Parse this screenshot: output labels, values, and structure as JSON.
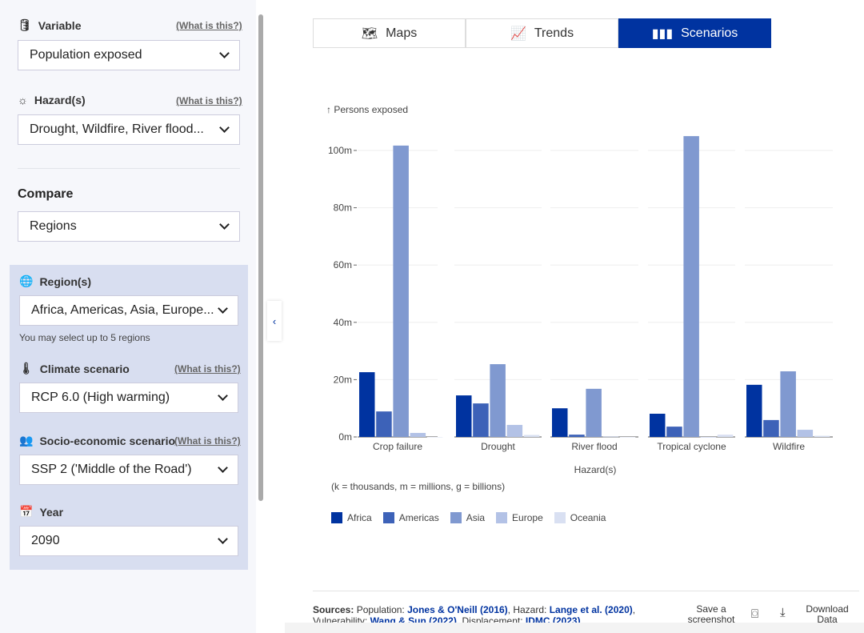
{
  "sidebar": {
    "variable": {
      "label": "Variable",
      "help": "(What is this?)",
      "value": "Population exposed"
    },
    "hazard": {
      "label": "Hazard(s)",
      "help": "(What is this?)",
      "value": "Drought, Wildfire, River flood..."
    },
    "compare": {
      "label": "Compare",
      "value": "Regions"
    },
    "regions": {
      "label": "Region(s)",
      "value": "Africa, Americas, Asia, Europe...",
      "note": "You may select up to 5 regions"
    },
    "climate": {
      "label": "Climate scenario",
      "help": "(What is this?)",
      "value": "RCP 6.0 (High warming)"
    },
    "socio": {
      "label": "Socio-economic scenario",
      "help": "(What is this?)",
      "value": "SSP 2 ('Middle of the Road')"
    },
    "year": {
      "label": "Year",
      "value": "2090"
    }
  },
  "tabs": [
    {
      "label": "Maps",
      "icon": "map-icon"
    },
    {
      "label": "Trends",
      "icon": "line-chart-icon"
    },
    {
      "label": "Scenarios",
      "icon": "bar-chart-icon",
      "active": true
    }
  ],
  "chart_data": {
    "type": "bar",
    "ylabel": "↑ Persons exposed",
    "xlabel": "Hazard(s)",
    "note": "(k = thousands, m = millions, g = billions)",
    "categories": [
      "Crop failure",
      "Drought",
      "River flood",
      "Tropical cyclone",
      "Wildfire"
    ],
    "yticks": [
      "0m",
      "20m",
      "40m",
      "60m",
      "80m",
      "100m"
    ],
    "ylim": [
      0,
      105
    ],
    "unit": "millions",
    "grid": true,
    "legend": "bottom-left",
    "series": [
      {
        "name": "Africa",
        "color": "#0033a0",
        "values": [
          22.6,
          14.5,
          10.0,
          8.1,
          18.2
        ]
      },
      {
        "name": "Americas",
        "color": "#3d62b8",
        "values": [
          8.9,
          11.7,
          0.8,
          3.6,
          5.9
        ]
      },
      {
        "name": "Asia",
        "color": "#8099d0",
        "values": [
          101.7,
          25.4,
          16.8,
          105.0,
          22.9
        ]
      },
      {
        "name": "Europe",
        "color": "#b3c2e6",
        "values": [
          1.4,
          4.2,
          0.1,
          0.0,
          2.5
        ]
      },
      {
        "name": "Oceania",
        "color": "#d9e0f2",
        "values": [
          0.0,
          0.7,
          0.0,
          0.8,
          0.4
        ]
      }
    ]
  },
  "footer": {
    "sources_label": "Sources:",
    "pop": "Population:",
    "pop_link": "Jones & O'Neill (2016)",
    "haz": ", Hazard:",
    "haz_link": "Lange et al. (2020)",
    "vul": ", Vulnerability:",
    "vul_link": "Wang & Sun (2022)",
    "disp": ", Displacement:",
    "disp_link": "IDMC (2023)",
    "screenshot": "Save a screenshot",
    "download": "Download Data"
  }
}
